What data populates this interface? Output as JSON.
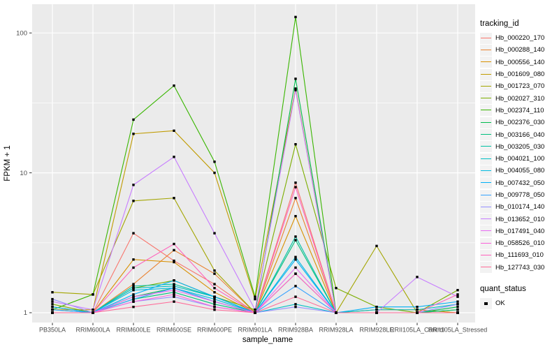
{
  "chart_data": {
    "type": "line",
    "title": "",
    "xlabel": "sample_name",
    "ylabel": "FPKM + 1",
    "y_scale": "log10",
    "y_ticks": [
      1,
      10,
      100
    ],
    "y_tick_labels": [
      "1",
      "10",
      "100"
    ],
    "ylim_log10": [
      -0.07,
      2.2
    ],
    "grid": true,
    "legend_title": "tracking_id",
    "legend_position": "right",
    "categories": [
      "PB350LA",
      "RRIM600LA",
      "RRIM600LE",
      "RRIM600SE",
      "RRIM600PE",
      "RRIM901LA",
      "RRIM928BA",
      "RRIM928LA",
      "RRIM928LE",
      "RRII105LA_Control",
      "RRII105LA_Stressed"
    ],
    "series": [
      {
        "name": "Hb_000220_170",
        "color": "#F8766D",
        "values": [
          1.0,
          1.0,
          3.7,
          2.35,
          1.6,
          1.0,
          8.5,
          1.0,
          1.0,
          1.0,
          1.0
        ]
      },
      {
        "name": "Hb_000288_140",
        "color": "#EA8331",
        "values": [
          1.0,
          1.0,
          1.6,
          2.8,
          1.9,
          1.0,
          6.6,
          1.0,
          1.0,
          1.0,
          1.0
        ]
      },
      {
        "name": "Hb_000556_140",
        "color": "#D89000",
        "values": [
          1.1,
          1.0,
          2.4,
          2.3,
          1.4,
          1.0,
          4.9,
          1.0,
          1.05,
          1.05,
          1.0
        ]
      },
      {
        "name": "Hb_001609_080",
        "color": "#C09B00",
        "values": [
          1.05,
          1.05,
          19.0,
          20.0,
          10.0,
          1.25,
          40.0,
          1.0,
          1.0,
          1.0,
          1.0
        ]
      },
      {
        "name": "Hb_001723_070",
        "color": "#A3A500",
        "values": [
          1.4,
          1.35,
          6.3,
          6.6,
          2.0,
          1.0,
          1.9,
          1.0,
          3.0,
          1.0,
          1.05
        ]
      },
      {
        "name": "Hb_002027_310",
        "color": "#7CAE00",
        "values": [
          1.15,
          1.0,
          1.5,
          1.7,
          1.3,
          1.05,
          16.0,
          1.5,
          1.1,
          1.0,
          1.45
        ]
      },
      {
        "name": "Hb_002374_110",
        "color": "#39B600",
        "values": [
          1.05,
          1.35,
          24.0,
          42.0,
          12.0,
          1.3,
          130.0,
          1.0,
          1.0,
          1.0,
          1.0
        ]
      },
      {
        "name": "Hb_002376_030",
        "color": "#00BB4E",
        "values": [
          1.0,
          1.0,
          1.3,
          1.5,
          1.2,
          1.0,
          47.0,
          1.0,
          1.0,
          1.0,
          1.1
        ]
      },
      {
        "name": "Hb_003166_040",
        "color": "#00BF7D",
        "values": [
          1.0,
          1.0,
          1.25,
          1.4,
          1.15,
          1.0,
          3.3,
          1.0,
          1.0,
          1.0,
          1.05
        ]
      },
      {
        "name": "Hb_003205_030",
        "color": "#00C1A3",
        "values": [
          1.0,
          1.0,
          1.55,
          1.6,
          1.3,
          1.0,
          3.5,
          1.0,
          1.0,
          1.0,
          1.0
        ]
      },
      {
        "name": "Hb_004021_100",
        "color": "#00BFC4",
        "values": [
          1.05,
          1.0,
          1.5,
          1.55,
          1.3,
          1.0,
          1.15,
          1.0,
          1.05,
          1.05,
          1.15
        ]
      },
      {
        "name": "Hb_004055_080",
        "color": "#00BAE0",
        "values": [
          1.0,
          1.0,
          1.45,
          1.5,
          1.25,
          1.0,
          2.5,
          1.0,
          1.0,
          1.0,
          1.0
        ]
      },
      {
        "name": "Hb_007432_050",
        "color": "#00B0F6",
        "values": [
          1.1,
          1.0,
          1.35,
          1.7,
          1.3,
          1.0,
          2.4,
          1.0,
          1.1,
          1.1,
          1.2
        ]
      },
      {
        "name": "Hb_009778_050",
        "color": "#35A2FF",
        "values": [
          1.05,
          1.0,
          1.25,
          1.5,
          1.2,
          1.0,
          1.55,
          1.0,
          1.0,
          1.0,
          1.0
        ]
      },
      {
        "name": "Hb_010174_140",
        "color": "#9590FF",
        "values": [
          1.25,
          1.0,
          1.2,
          1.3,
          1.1,
          1.0,
          1.1,
          1.0,
          1.0,
          1.0,
          1.15
        ]
      },
      {
        "name": "Hb_013652_010",
        "color": "#C77CFF",
        "values": [
          1.2,
          1.05,
          8.2,
          13.0,
          3.7,
          1.05,
          39.0,
          1.0,
          1.0,
          1.8,
          1.3
        ]
      },
      {
        "name": "Hb_017491_040",
        "color": "#E76BF3",
        "values": [
          1.0,
          1.0,
          1.3,
          1.45,
          1.2,
          1.0,
          2.1,
          1.0,
          1.0,
          1.0,
          1.0
        ]
      },
      {
        "name": "Hb_058526_010",
        "color": "#FA62DB",
        "values": [
          1.0,
          1.0,
          1.2,
          1.35,
          1.1,
          1.0,
          1.9,
          1.0,
          1.0,
          1.0,
          1.0
        ]
      },
      {
        "name": "Hb_111693_010",
        "color": "#FF62BC",
        "values": [
          1.0,
          1.0,
          2.1,
          3.1,
          1.5,
          1.0,
          7.9,
          1.0,
          1.0,
          1.0,
          1.35
        ]
      },
      {
        "name": "Hb_127743_030",
        "color": "#FF6A98",
        "values": [
          1.0,
          1.0,
          1.1,
          1.2,
          1.05,
          1.0,
          1.3,
          1.0,
          1.0,
          1.0,
          1.0
        ]
      }
    ],
    "quant_legend": {
      "title": "quant_status",
      "items": [
        "OK"
      ],
      "marker_color": "#000000"
    },
    "colors": {
      "panel_background": "#EBEBEB",
      "gridline": "#FFFFFF",
      "tick_label": "#4D4D4D",
      "axis_title": "#000000",
      "point": "#000000",
      "legend_key_background": "#F2F2F2"
    }
  }
}
